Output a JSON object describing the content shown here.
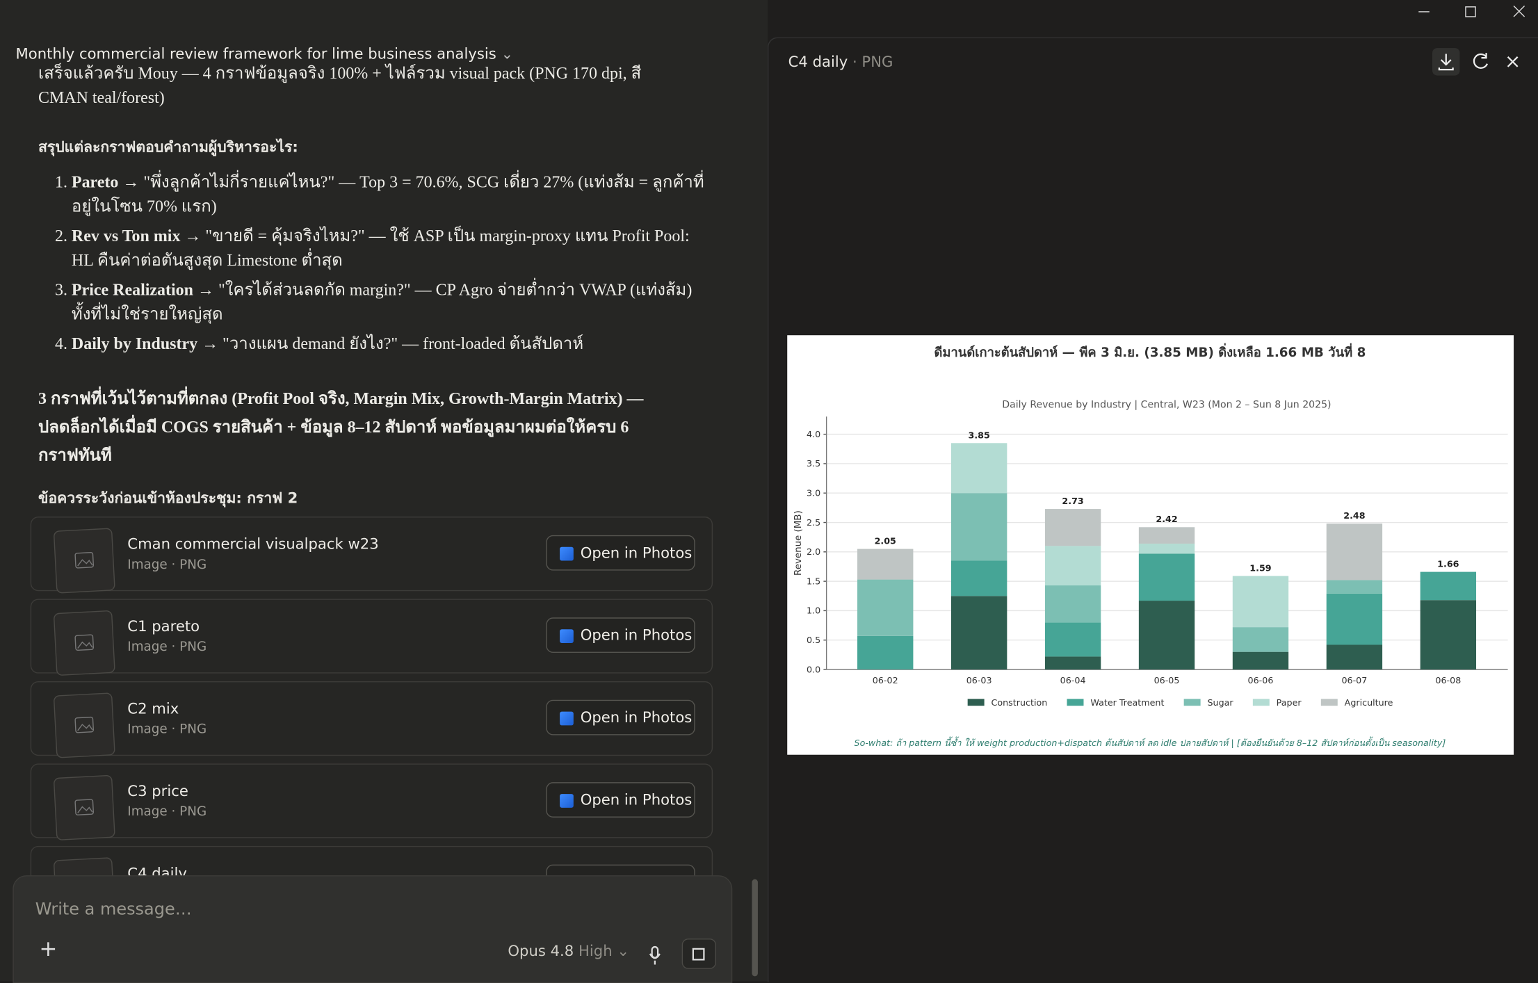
{
  "window": {
    "title": "Monthly commercial review framework for lime business analysis"
  },
  "message": {
    "intro": "เสร็จแล้วครับ Mouy — 4 กราฟข้อมูลจริง 100% + ไฟล์รวม visual pack (PNG 170 dpi, สี CMAN teal/forest)",
    "summary_heading": "สรุปแต่ละกราฟตอบคำถามผู้บริหารอะไร:",
    "items": [
      {
        "lead": "Pareto",
        "text": "→ \"พึ่งลูกค้าไม่กี่รายแค่ไหน?\" — Top 3 = 70.6%, SCG เดี่ยว 27% (แท่งส้ม = ลูกค้าที่อยู่ในโซน 70% แรก)"
      },
      {
        "lead": "Rev vs Ton mix",
        "text": "→ \"ขายดี = คุ้มจริงไหม?\" — ใช้ ASP เป็น margin-proxy แทน Profit Pool: HL คืนค่าต่อตันสูงสุด Limestone ต่ำสุด"
      },
      {
        "lead": "Price Realization",
        "text": "→ \"ใครได้ส่วนลดกัด margin?\" — CP Agro จ่ายต่ำกว่า VWAP (แท่งส้ม) ทั้งที่ไม่ใช่รายใหญ่สุด"
      },
      {
        "lead": "Daily by Industry",
        "text": "→ \"วางแผน demand ยังไง?\" — front-loaded ต้นสัปดาห์"
      }
    ],
    "note": "3 กราฟที่เว้นไว้ตามที่ตกลง (Profit Pool จริง, Margin Mix, Growth-Margin Matrix) — ปลดล็อกได้เมื่อมี COGS รายสินค้า + ข้อมูล 8–12 สัปดาห์ พอข้อมูลมาผมต่อให้ครบ 6 กราฟทันที",
    "caution": "ข้อควรระวังก่อนเข้าห้องประชุม: กราฟ 2"
  },
  "attachment_action": "Open in Photos",
  "attachments": [
    {
      "name": "Cman commercial visualpack w23",
      "meta": "Image · PNG"
    },
    {
      "name": "C1 pareto",
      "meta": "Image · PNG"
    },
    {
      "name": "C2 mix",
      "meta": "Image · PNG"
    },
    {
      "name": "C3 price",
      "meta": "Image · PNG"
    },
    {
      "name": "C4 daily"
    }
  ],
  "composer": {
    "placeholder": "Write a message…",
    "model": "Opus 4.8",
    "effort": "High"
  },
  "preview": {
    "name": "C4 daily",
    "format": "PNG",
    "chart": {
      "type": "stacked-bar",
      "title": "ดีมานด์เกาะต้นสัปดาห์ — พีค 3 มิ.ย. (3.85 MB) ดิ่งเหลือ 1.66 MB วันที่ 8",
      "subtitle": "Daily Revenue by Industry  |  Central, W23 (Mon 2 – Sun 8 Jun 2025)",
      "y_label": "Revenue (MB)",
      "footnote": "So-what: ถ้า pattern นี้ซ้ำ ให้ weight production+dispatch ต้นสัปดาห์ ลด idle ปลายสัปดาห์ | [ต้องยืนยันด้วย 8–12 สัปดาห์ก่อนตั้งเป็น seasonality]",
      "categories": [
        "06-02",
        "06-03",
        "06-04",
        "06-05",
        "06-06",
        "06-07",
        "06-08"
      ],
      "series": [
        {
          "name": "Construction",
          "color": "#2e5e50",
          "values": [
            0,
            1.25,
            0.22,
            1.17,
            0.3,
            0.42,
            1.18
          ]
        },
        {
          "name": "Water Treatment",
          "color": "#46a596",
          "values": [
            0.57,
            0.6,
            0.58,
            0.8,
            0,
            0.87,
            0.48
          ]
        },
        {
          "name": "Sugar",
          "color": "#7cbfb3",
          "values": [
            0.96,
            1.15,
            0.63,
            0,
            0.42,
            0.23,
            0
          ]
        },
        {
          "name": "Paper",
          "color": "#b3dcd3",
          "values": [
            0,
            0.85,
            0.67,
            0.17,
            0.87,
            0,
            0
          ]
        },
        {
          "name": "Agriculture",
          "color": "#bfc5c4",
          "values": [
            0.52,
            0,
            0.63,
            0.28,
            0,
            0.96,
            0
          ]
        }
      ],
      "totals": [
        2.05,
        3.85,
        2.73,
        2.42,
        1.59,
        2.48,
        1.66
      ],
      "ylim": [
        0,
        4.3
      ],
      "yticks": [
        {
          "value": 0,
          "label": "0.0"
        },
        {
          "value": 0.5,
          "label": "0.5"
        },
        {
          "value": 1,
          "label": "1.0"
        },
        {
          "value": 1.5,
          "label": "1.5"
        },
        {
          "value": 2,
          "label": "2.0"
        },
        {
          "value": 2.5,
          "label": "2.5"
        },
        {
          "value": 3,
          "label": "3.0"
        },
        {
          "value": 3.5,
          "label": "3.5"
        },
        {
          "value": 4,
          "label": "4.0"
        }
      ],
      "grid": true
    }
  }
}
